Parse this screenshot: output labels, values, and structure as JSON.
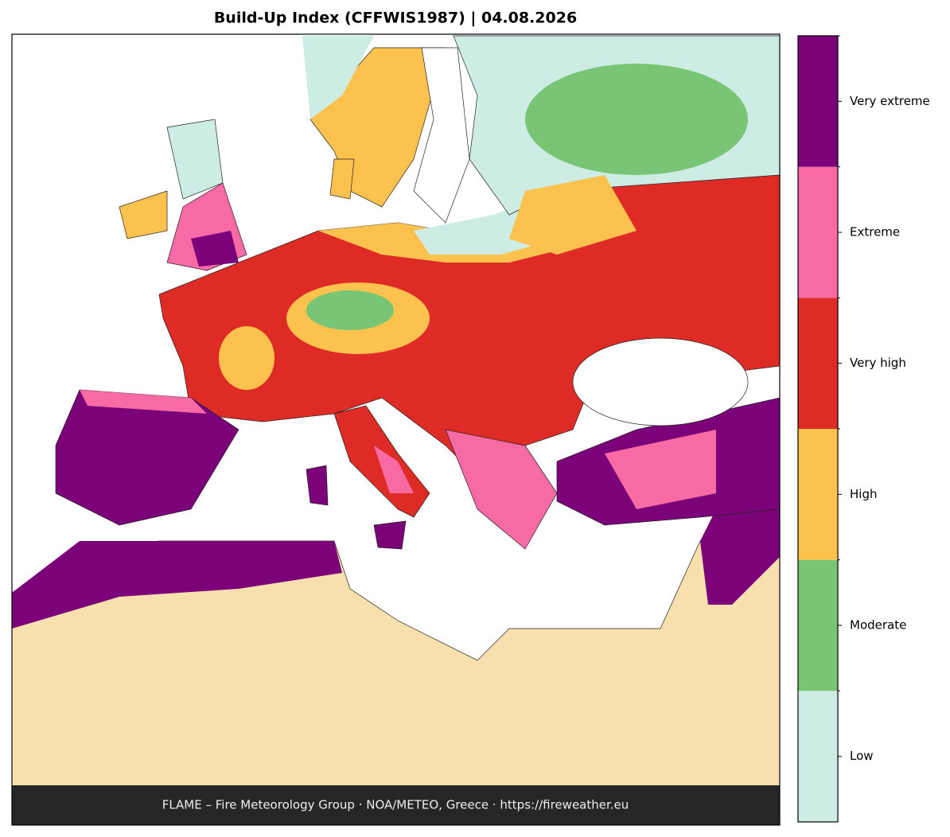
{
  "header": {
    "title": "Build-Up Index (CFFWIS1987)  |  04.08.2026"
  },
  "legend": {
    "classes": [
      {
        "label": "Low",
        "color": "#cdece4"
      },
      {
        "label": "Moderate",
        "color": "#77c575"
      },
      {
        "label": "High",
        "color": "#fdc24e"
      },
      {
        "label": "Very high",
        "color": "#de2b25"
      },
      {
        "label": "Extreme",
        "color": "#f76aa4"
      },
      {
        "label": "Very extreme",
        "color": "#7b0279"
      }
    ]
  },
  "footer": {
    "credit": "FLAME – Fire Meteorology Group · NOA/METEO, Greece · https://fireweather.eu"
  }
}
